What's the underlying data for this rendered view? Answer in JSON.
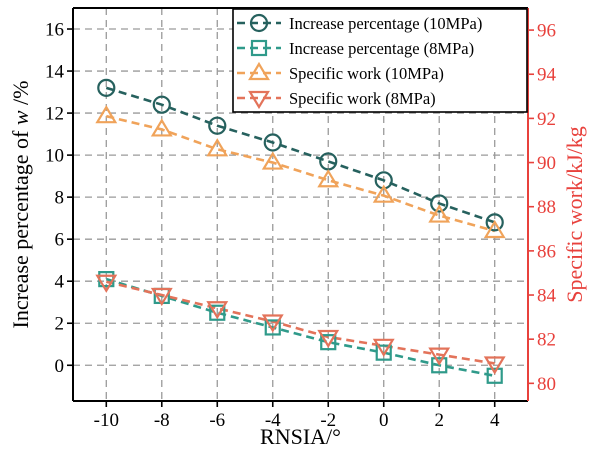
{
  "chart_data": {
    "type": "line",
    "x": [
      -10,
      -8,
      -6,
      -4,
      -2,
      0,
      2,
      4
    ],
    "xlabel": "RNSIA/°",
    "xlim": [
      -11.2,
      5.2
    ],
    "xticks": [
      -10,
      -8,
      -6,
      -4,
      -2,
      0,
      2,
      4
    ],
    "ylabel_left_prefix": "Increase percentage of ",
    "ylabel_left_var": "w",
    "ylabel_left_suffix": " /%",
    "ylim_left": [
      -1.7,
      17
    ],
    "yticks_left": [
      0,
      2,
      4,
      6,
      8,
      10,
      12,
      14,
      16
    ],
    "ylabel_right": "Specific work/kJ/kg",
    "ylim_right": [
      79.2,
      97
    ],
    "yticks_right": [
      80,
      82,
      84,
      86,
      88,
      90,
      92,
      94,
      96
    ],
    "right_axis_color": "#e8413c",
    "grid": true,
    "legend_position": "top-right",
    "series": [
      {
        "name": "Increase percentage (10MPa)",
        "axis": "left",
        "marker": "circle",
        "color": "#26615e",
        "values": [
          13.2,
          12.4,
          11.4,
          10.6,
          9.7,
          8.8,
          7.7,
          6.8
        ]
      },
      {
        "name": "Increase percentage (8MPa)",
        "axis": "left",
        "marker": "square",
        "color": "#2f9a8a",
        "values": [
          4.1,
          3.3,
          2.5,
          1.8,
          1.1,
          0.6,
          0.0,
          -0.5
        ]
      },
      {
        "name": "Specific work (10MPa)",
        "axis": "right",
        "marker": "triangle-up",
        "color": "#f0a35a",
        "values": [
          92.1,
          91.5,
          90.6,
          90.0,
          89.2,
          88.5,
          87.6,
          86.9
        ]
      },
      {
        "name": "Specific work (8MPa)",
        "axis": "right",
        "marker": "triangle-down",
        "color": "#e3735a",
        "values": [
          84.6,
          84.0,
          83.4,
          82.8,
          82.1,
          81.7,
          81.3,
          80.9
        ]
      }
    ]
  }
}
